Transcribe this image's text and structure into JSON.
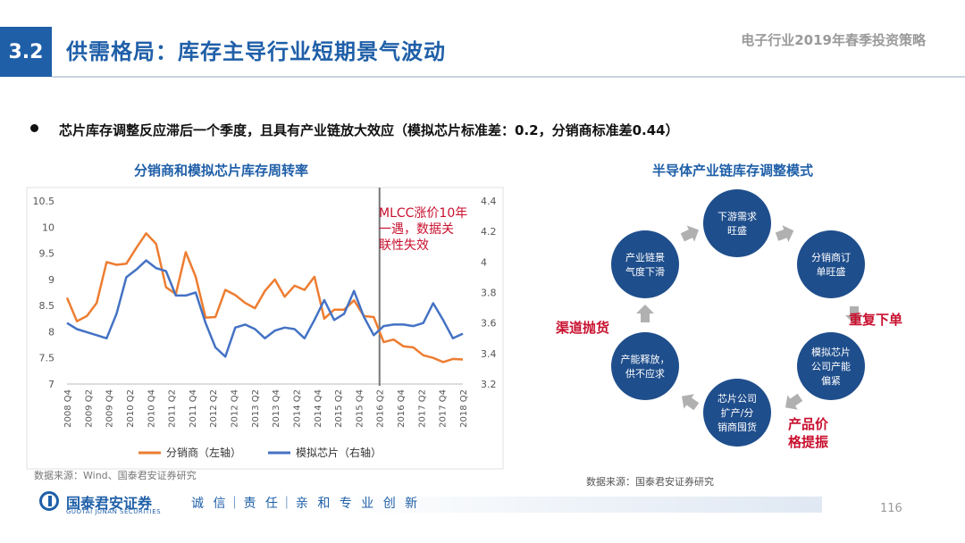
{
  "header": {
    "section_number": "3.2",
    "section_title": "供需格局：库存主导行业短期景气波动",
    "report_title": "电子行业2019年春季投资策略"
  },
  "bullet": "芯片库存调整反应滞后一个季度，且具有产业链放大效应（模拟芯片标准差：0.2，分销商标准差0.44）",
  "left_chart": {
    "title": "分销商和模拟芯片库存周转率",
    "annotation_lines": [
      "MLCC涨价10年",
      "一遇，数据关",
      "联性失效"
    ],
    "source": "数据来源：Wind、国泰君安证券研究"
  },
  "chart_data": {
    "type": "line",
    "title": "分销商和模拟芯片库存周转率",
    "x_labels": [
      "2008 Q4",
      "2009 Q2",
      "2009 Q4",
      "2010 Q2",
      "2010 Q4",
      "2011 Q2",
      "2011 Q4",
      "2012 Q2",
      "2012 Q4",
      "2013 Q2",
      "2013 Q4",
      "2014 Q2",
      "2014 Q4",
      "2015 Q2",
      "2015 Q4",
      "2016 Q2",
      "2016 Q4",
      "2017 Q2",
      "2017 Q4",
      "2018 Q2"
    ],
    "left_axis": {
      "ylim": [
        7,
        10.5
      ],
      "ticks": [
        "10.5",
        "10",
        "9.5",
        "9",
        "8.5",
        "8",
        "7.5",
        "7"
      ]
    },
    "right_axis": {
      "ylim": [
        3.2,
        4.4
      ],
      "ticks": [
        "4.4",
        "4.2",
        "4",
        "3.8",
        "3.6",
        "3.4",
        "3.2"
      ]
    },
    "series": [
      {
        "name": "分销商（左轴）",
        "axis": "left",
        "color": "#ed7d31",
        "values": [
          8.65,
          8.2,
          8.3,
          8.55,
          9.33,
          9.28,
          9.3,
          9.6,
          9.88,
          9.68,
          8.85,
          8.72,
          9.52,
          9.05,
          8.27,
          8.28,
          8.8,
          8.7,
          8.55,
          8.45,
          8.78,
          9.0,
          8.67,
          8.88,
          8.8,
          9.05,
          8.25,
          8.42,
          8.42,
          8.6,
          8.3,
          8.28,
          7.8,
          7.85,
          7.72,
          7.7,
          7.55,
          7.5,
          7.42,
          7.48,
          7.47
        ]
      },
      {
        "name": "模拟芯片（右轴）",
        "axis": "right",
        "color": "#4472c4",
        "values": [
          3.6,
          3.56,
          3.54,
          3.52,
          3.5,
          3.66,
          3.9,
          3.95,
          4.01,
          3.96,
          3.94,
          3.78,
          3.78,
          3.8,
          3.6,
          3.44,
          3.38,
          3.57,
          3.59,
          3.56,
          3.5,
          3.55,
          3.57,
          3.56,
          3.5,
          3.62,
          3.75,
          3.62,
          3.66,
          3.81,
          3.64,
          3.52,
          3.58,
          3.59,
          3.59,
          3.58,
          3.6,
          3.73,
          3.62,
          3.5,
          3.53
        ]
      }
    ],
    "event_x_label": "2016 Q2",
    "legend": [
      "分销商（左轴）",
      "模拟芯片（右轴）"
    ],
    "legend_position": "bottom"
  },
  "right_diagram": {
    "title": "半导体产业链库存调整模式",
    "nodes": [
      {
        "lines": [
          "下游需求",
          "旺盛"
        ]
      },
      {
        "lines": [
          "分销商订",
          "单旺盛"
        ]
      },
      {
        "lines": [
          "模拟芯片",
          "公司产能",
          "偏紧"
        ]
      },
      {
        "lines": [
          "芯片公司",
          "扩产/分",
          "销商囤货"
        ]
      },
      {
        "lines": [
          "产能释放，",
          "供不应求"
        ]
      },
      {
        "lines": [
          "产业链景",
          "气度下滑"
        ]
      }
    ],
    "labels": {
      "repeat_order": "重复下单",
      "channel_dump": "渠道抛货",
      "price_up": [
        "产品价",
        "格提振"
      ]
    },
    "node_color": "#1f4e8c",
    "arrow_color": "#b0b0b0",
    "source": "数据来源：国泰君安证券研究"
  },
  "footer": {
    "company": "国泰君安证券",
    "company_en": "GUOTAI JUNAN SECURITIES",
    "slogan": "诚 信｜责 任｜亲 和  专 业  创 新",
    "page": "116"
  }
}
